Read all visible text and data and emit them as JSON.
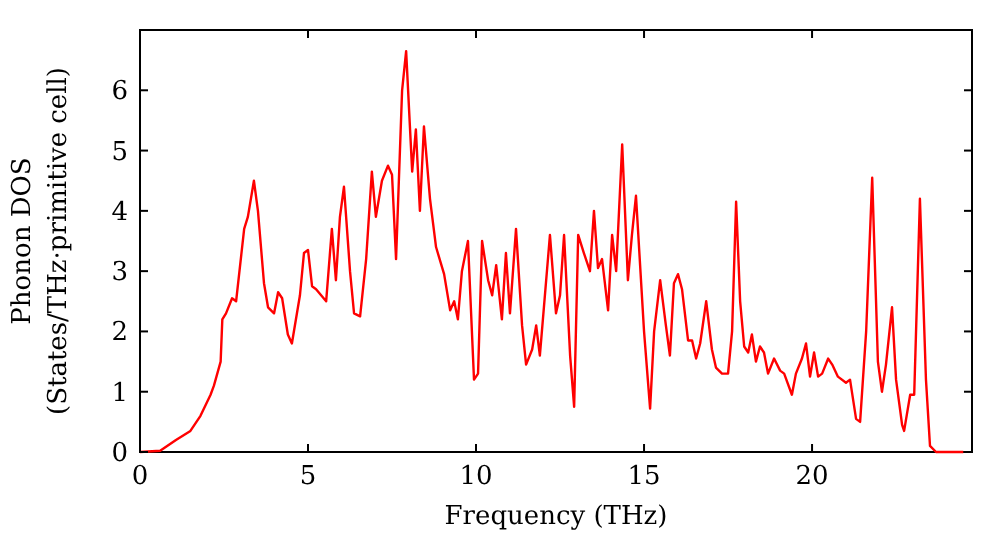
{
  "chart_data": {
    "type": "line",
    "xlabel": "Frequency (THz)",
    "ylabel": "Phonon DOS\n(States/THz·primitive cell)",
    "xlim": [
      0,
      24.76
    ],
    "ylim": [
      0,
      7
    ],
    "xticks": [
      0,
      5,
      10,
      15,
      20
    ],
    "yticks": [
      0,
      1,
      2,
      3,
      4,
      5,
      6
    ],
    "grid": false,
    "marker": "none",
    "line_style": "solid",
    "series": [
      {
        "color": "#ff0000",
        "x": [
          0,
          0.6,
          1.07,
          1.5,
          1.8,
          2.1,
          2.2,
          2.4,
          2.45,
          2.56,
          2.74,
          2.86,
          3.1,
          3.21,
          3.39,
          3.51,
          3.69,
          3.81,
          3.99,
          4.11,
          4.23,
          4.4,
          4.52,
          4.76,
          4.88,
          5.0,
          5.12,
          5.24,
          5.54,
          5.71,
          5.83,
          5.95,
          6.07,
          6.25,
          6.37,
          6.55,
          6.73,
          6.9,
          7.02,
          7.2,
          7.38,
          7.5,
          7.62,
          7.8,
          7.92,
          8.1,
          8.21,
          8.33,
          8.45,
          8.63,
          8.81,
          9.05,
          9.23,
          9.35,
          9.46,
          9.58,
          9.76,
          9.94,
          10.06,
          10.18,
          10.36,
          10.48,
          10.6,
          10.77,
          10.89,
          11.01,
          11.19,
          11.37,
          11.49,
          11.67,
          11.79,
          11.9,
          12.02,
          12.2,
          12.38,
          12.5,
          12.62,
          12.8,
          12.92,
          13.04,
          13.21,
          13.39,
          13.51,
          13.63,
          13.75,
          13.93,
          14.05,
          14.17,
          14.35,
          14.52,
          14.64,
          14.76,
          15.0,
          15.18,
          15.3,
          15.48,
          15.65,
          15.77,
          15.89,
          16.01,
          16.13,
          16.31,
          16.43,
          16.55,
          16.67,
          16.85,
          17.02,
          17.14,
          17.32,
          17.5,
          17.62,
          17.74,
          17.86,
          17.98,
          18.1,
          18.21,
          18.33,
          18.45,
          18.57,
          18.69,
          18.87,
          19.05,
          19.17,
          19.4,
          19.52,
          19.7,
          19.82,
          19.94,
          20.06,
          20.18,
          20.3,
          20.48,
          20.6,
          20.77,
          21.01,
          21.13,
          21.31,
          21.43,
          21.61,
          21.79,
          21.96,
          22.08,
          22.2,
          22.38,
          22.5,
          22.68,
          22.74,
          22.92,
          23.04,
          23.21,
          23.39,
          23.51,
          23.69,
          24.5
        ],
        "values": [
          0,
          0.02,
          0.2,
          0.35,
          0.6,
          0.95,
          1.1,
          1.5,
          2.2,
          2.3,
          2.55,
          2.5,
          3.7,
          3.9,
          4.5,
          4.0,
          2.8,
          2.4,
          2.3,
          2.65,
          2.55,
          1.95,
          1.8,
          2.6,
          3.3,
          3.35,
          2.75,
          2.7,
          2.5,
          3.7,
          2.85,
          3.9,
          4.4,
          3.0,
          2.3,
          2.25,
          3.2,
          4.65,
          3.9,
          4.5,
          4.75,
          4.6,
          3.2,
          6.0,
          6.65,
          4.65,
          5.35,
          4.0,
          5.4,
          4.2,
          3.4,
          2.95,
          2.35,
          2.5,
          2.2,
          3.0,
          3.5,
          1.2,
          1.3,
          3.5,
          2.85,
          2.6,
          3.1,
          2.2,
          3.3,
          2.3,
          3.7,
          2.1,
          1.45,
          1.7,
          2.1,
          1.6,
          2.4,
          3.6,
          2.3,
          2.6,
          3.6,
          1.6,
          0.75,
          3.6,
          3.3,
          3.0,
          4.0,
          3.05,
          3.2,
          2.35,
          3.6,
          3.0,
          5.1,
          2.85,
          3.6,
          4.25,
          2.0,
          0.72,
          2.0,
          2.85,
          2.1,
          1.6,
          2.8,
          2.95,
          2.7,
          1.85,
          1.85,
          1.55,
          1.8,
          2.5,
          1.7,
          1.4,
          1.3,
          1.3,
          2.0,
          4.15,
          2.5,
          1.75,
          1.65,
          1.95,
          1.5,
          1.75,
          1.65,
          1.3,
          1.55,
          1.35,
          1.3,
          0.95,
          1.3,
          1.55,
          1.8,
          1.25,
          1.65,
          1.25,
          1.3,
          1.55,
          1.45,
          1.25,
          1.15,
          1.2,
          0.55,
          0.5,
          2.0,
          4.55,
          1.5,
          1.0,
          1.45,
          2.4,
          1.2,
          0.45,
          0.35,
          0.95,
          0.95,
          4.2,
          1.2,
          0.1,
          0,
          0
        ]
      }
    ]
  }
}
